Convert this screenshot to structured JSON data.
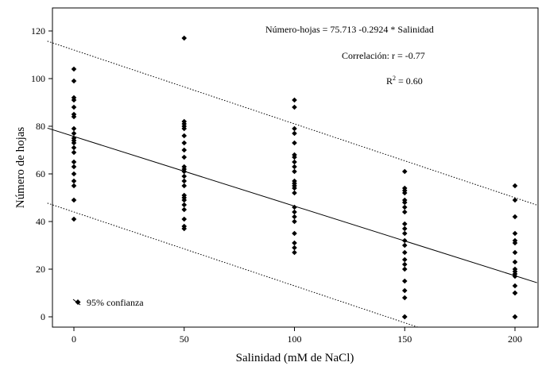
{
  "chart_data": {
    "type": "scatter",
    "xlabel": "Salinidad (mM de NaCl)",
    "ylabel": "Número de hojas",
    "xlim": [
      -12,
      210
    ],
    "ylim": [
      -4,
      128
    ],
    "x_ticks": [
      0,
      50,
      100,
      150,
      200
    ],
    "y_ticks": [
      0,
      20,
      40,
      60,
      80,
      100,
      120
    ],
    "grid": false,
    "points": {
      "0": [
        104,
        99,
        92,
        91,
        88,
        85,
        84,
        79,
        77,
        75,
        74,
        73,
        71,
        69,
        65,
        63,
        60,
        57,
        55,
        49,
        41
      ],
      "50": [
        117,
        82,
        81,
        80,
        79,
        76,
        73,
        70,
        67,
        63,
        62,
        61,
        59,
        57,
        55,
        51,
        50,
        49,
        47,
        45,
        41,
        38,
        37
      ],
      "100": [
        91,
        88,
        79,
        77,
        73,
        68,
        67,
        65,
        63,
        61,
        57,
        56,
        55,
        54,
        52,
        46,
        44,
        42,
        40,
        35,
        31,
        29,
        27
      ],
      "150": [
        61,
        54,
        53,
        52,
        49,
        48,
        46,
        44,
        39,
        37,
        35,
        32,
        30,
        27,
        24,
        22,
        20,
        15,
        11,
        8,
        0,
        0
      ],
      "200": [
        55,
        49,
        42,
        35,
        32,
        31,
        27,
        23,
        20,
        19,
        18,
        17,
        13,
        10,
        10,
        0,
        0
      ]
    },
    "regression": {
      "intercept": 75.713,
      "slope": -0.2924
    },
    "confidence_band": {
      "upper": {
        "at_x0": 112,
        "at_xmax": 50
      },
      "lower": {
        "at_x0": 44,
        "at_xmax": -18
      }
    },
    "annotations": {
      "equation": "Número-hojas = 75.713 -0.2924 * Salinidad",
      "correlation": "Correlación: r = -0.77",
      "r2_prefix": "R",
      "r2_sup": "2",
      "r2_suffix": " = 0.60",
      "legend_confidence": "95% confianza"
    }
  }
}
